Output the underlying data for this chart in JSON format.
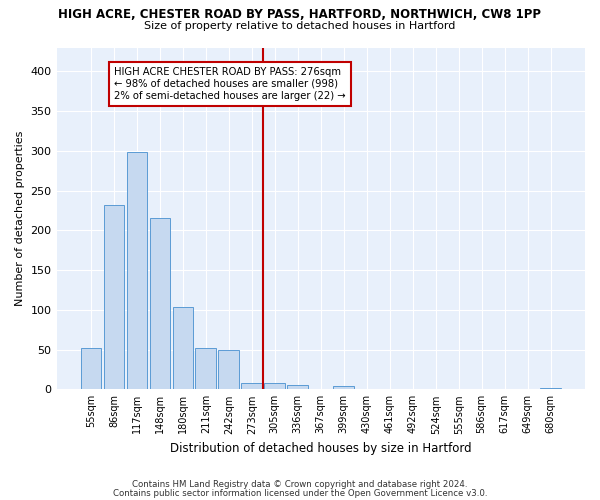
{
  "title1": "HIGH ACRE, CHESTER ROAD BY PASS, HARTFORD, NORTHWICH, CW8 1PP",
  "title2": "Size of property relative to detached houses in Hartford",
  "xlabel": "Distribution of detached houses by size in Hartford",
  "ylabel": "Number of detached properties",
  "bar_labels": [
    "55sqm",
    "86sqm",
    "117sqm",
    "148sqm",
    "180sqm",
    "211sqm",
    "242sqm",
    "273sqm",
    "305sqm",
    "336sqm",
    "367sqm",
    "399sqm",
    "430sqm",
    "461sqm",
    "492sqm",
    "524sqm",
    "555sqm",
    "586sqm",
    "617sqm",
    "649sqm",
    "680sqm"
  ],
  "bar_values": [
    52,
    232,
    299,
    215,
    103,
    52,
    49,
    8,
    8,
    6,
    0,
    4,
    0,
    0,
    0,
    0,
    0,
    0,
    0,
    0,
    2
  ],
  "bar_color": "#c6d9f0",
  "bar_edge_color": "#5b9bd5",
  "vline_color": "#c00000",
  "annotation_title": "HIGH ACRE CHESTER ROAD BY PASS: 276sqm",
  "annotation_line1": "← 98% of detached houses are smaller (998)",
  "annotation_line2": "2% of semi-detached houses are larger (22) →",
  "annotation_box_color": "#c00000",
  "background_color": "#e8f0fb",
  "grid_color": "#ffffff",
  "ylim": [
    0,
    430
  ],
  "yticks": [
    0,
    50,
    100,
    150,
    200,
    250,
    300,
    350,
    400
  ],
  "footer1": "Contains HM Land Registry data © Crown copyright and database right 2024.",
  "footer2": "Contains public sector information licensed under the Open Government Licence v3.0."
}
